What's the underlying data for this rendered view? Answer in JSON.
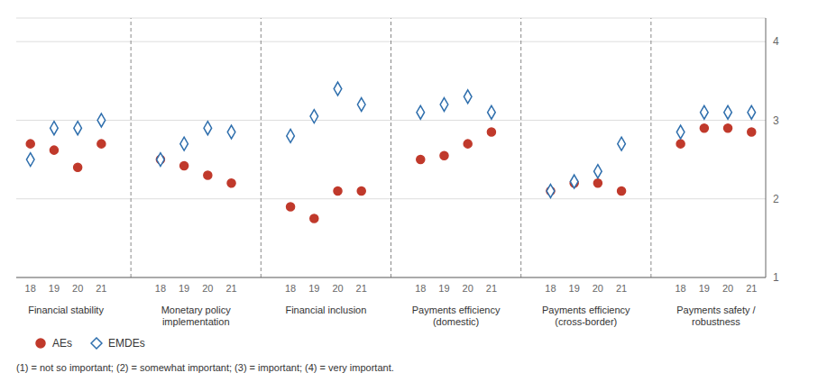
{
  "chart_data": {
    "type": "scatter",
    "categories": [
      "Financial stability",
      "Monetary policy\nimplementation",
      "Financial inclusion",
      "Payments efficiency\n(domestic)",
      "Payments efficiency\n(cross-border)",
      "Payments safety /\nrobustness"
    ],
    "subcategories": [
      "18",
      "19",
      "20",
      "21"
    ],
    "series": [
      {
        "name": "AEs",
        "color": "#c0392b",
        "marker": "circle",
        "values": [
          [
            2.7,
            2.62,
            2.4,
            2.7
          ],
          [
            2.5,
            2.42,
            2.3,
            2.2
          ],
          [
            1.9,
            1.75,
            2.1,
            2.1
          ],
          [
            2.5,
            2.55,
            2.7,
            2.85
          ],
          [
            2.1,
            2.2,
            2.2,
            2.1
          ],
          [
            2.7,
            2.9,
            2.9,
            2.85
          ]
        ]
      },
      {
        "name": "EMDEs",
        "color": "#2f6fad",
        "marker": "diamond_open",
        "values": [
          [
            2.5,
            2.9,
            2.9,
            3.0
          ],
          [
            2.5,
            2.7,
            2.9,
            2.85
          ],
          [
            2.8,
            3.05,
            3.4,
            3.2
          ],
          [
            3.1,
            3.2,
            3.3,
            3.1
          ],
          [
            2.1,
            2.22,
            2.35,
            2.7
          ],
          [
            2.85,
            3.1,
            3.1,
            3.1
          ]
        ]
      }
    ],
    "ylim": [
      1.0,
      4.3
    ],
    "yticks": [
      1,
      2,
      3,
      4
    ],
    "grid": true,
    "legend": "lower left",
    "annotations": [
      "(1) = not so important; (2) = somewhat important; (3) = important; (4) = very important."
    ]
  }
}
